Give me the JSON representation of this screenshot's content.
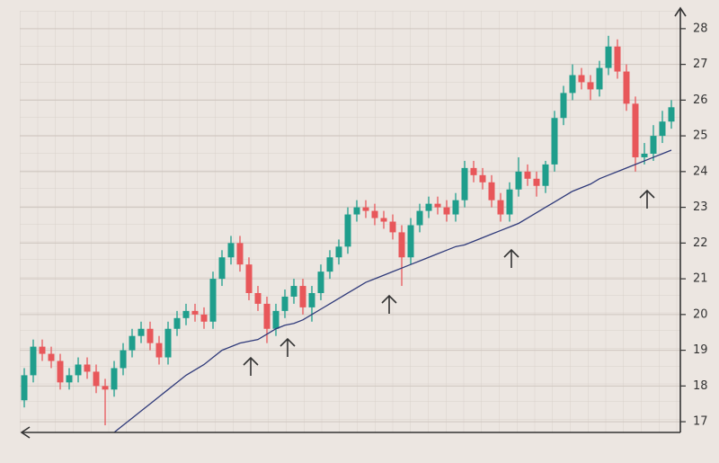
{
  "chart_data": {
    "type": "candlestick",
    "categories": [
      null,
      null,
      null,
      null,
      null,
      null,
      null,
      null,
      null,
      null,
      null,
      null,
      null,
      null,
      null,
      null,
      null,
      null,
      null,
      null,
      null,
      null,
      null,
      null,
      null,
      null,
      null,
      null,
      null,
      null,
      null,
      null,
      null,
      null,
      null,
      null,
      null,
      null,
      null,
      null,
      null,
      null,
      null,
      null,
      null,
      null,
      null,
      null,
      null,
      null,
      null,
      null,
      null,
      null,
      null,
      null,
      null,
      null,
      null,
      null,
      null,
      null,
      null,
      null,
      null,
      null,
      null,
      null,
      null,
      null,
      null,
      null,
      null
    ],
    "open": [
      17.6,
      18.3,
      19.1,
      18.9,
      18.7,
      18.1,
      18.3,
      18.6,
      18.4,
      18.0,
      17.9,
      18.5,
      19.0,
      19.4,
      19.6,
      19.2,
      18.8,
      19.6,
      19.9,
      20.1,
      20.0,
      19.8,
      21.0,
      21.6,
      22.0,
      21.4,
      20.6,
      20.3,
      19.6,
      20.1,
      20.5,
      20.8,
      20.2,
      20.6,
      21.2,
      21.6,
      21.9,
      22.8,
      23.0,
      22.9,
      22.7,
      22.6,
      22.3,
      21.6,
      22.5,
      22.9,
      23.1,
      23.0,
      22.8,
      23.2,
      24.1,
      23.9,
      23.7,
      23.2,
      22.8,
      23.5,
      24.0,
      23.8,
      23.6,
      24.2,
      25.5,
      26.2,
      26.7,
      26.5,
      26.3,
      26.9,
      27.5,
      26.8,
      25.9,
      24.4,
      24.5,
      25.0,
      25.4
    ],
    "high": [
      18.5,
      19.3,
      19.3,
      19.1,
      18.9,
      18.5,
      18.8,
      18.8,
      18.6,
      18.2,
      18.7,
      19.2,
      19.6,
      19.8,
      19.8,
      19.4,
      19.8,
      20.1,
      20.3,
      20.3,
      20.2,
      21.2,
      21.8,
      22.2,
      22.2,
      21.6,
      20.8,
      20.5,
      20.3,
      20.7,
      21.0,
      21.0,
      20.8,
      21.4,
      21.8,
      22.1,
      23.0,
      23.2,
      23.2,
      23.1,
      22.9,
      22.8,
      22.5,
      22.7,
      23.1,
      23.3,
      23.3,
      23.2,
      23.4,
      24.3,
      24.3,
      24.1,
      23.9,
      23.4,
      23.7,
      24.4,
      24.2,
      24.0,
      24.3,
      25.7,
      26.4,
      27.0,
      26.9,
      26.7,
      27.1,
      27.8,
      27.7,
      27.0,
      26.1,
      24.8,
      25.3,
      25.7,
      26.0
    ],
    "low": [
      17.4,
      18.1,
      18.7,
      18.5,
      17.9,
      17.9,
      18.1,
      18.2,
      17.8,
      16.9,
      17.7,
      18.3,
      18.8,
      19.2,
      19.0,
      18.6,
      18.6,
      19.4,
      19.7,
      19.8,
      19.6,
      19.6,
      20.8,
      21.4,
      21.2,
      20.4,
      20.1,
      19.2,
      19.4,
      19.9,
      20.3,
      20.0,
      19.8,
      20.4,
      21.0,
      21.4,
      21.7,
      22.6,
      22.7,
      22.5,
      22.4,
      22.1,
      20.8,
      21.4,
      22.3,
      22.7,
      22.8,
      22.6,
      22.6,
      23.0,
      23.7,
      23.5,
      23.0,
      22.6,
      22.6,
      23.3,
      23.6,
      23.3,
      23.4,
      24.0,
      25.3,
      26.0,
      26.3,
      26.0,
      26.1,
      26.7,
      26.6,
      25.7,
      24.0,
      24.2,
      24.3,
      24.8,
      25.2
    ],
    "close": [
      18.3,
      19.1,
      18.9,
      18.7,
      18.1,
      18.3,
      18.6,
      18.4,
      18.0,
      17.9,
      18.5,
      19.0,
      19.4,
      19.6,
      19.2,
      18.8,
      19.6,
      19.9,
      20.1,
      20.0,
      19.8,
      21.0,
      21.6,
      22.0,
      21.4,
      20.6,
      20.3,
      19.6,
      20.1,
      20.5,
      20.8,
      20.2,
      20.6,
      21.2,
      21.6,
      21.9,
      22.8,
      23.0,
      22.9,
      22.7,
      22.6,
      22.3,
      21.6,
      22.5,
      22.9,
      23.1,
      23.0,
      22.8,
      23.2,
      24.1,
      23.9,
      23.7,
      23.2,
      22.8,
      23.5,
      24.0,
      23.8,
      23.6,
      24.2,
      25.5,
      26.2,
      26.7,
      26.5,
      26.3,
      26.9,
      27.5,
      26.8,
      25.9,
      24.4,
      24.5,
      25.0,
      25.4,
      25.8
    ],
    "up_color": "#1f9e8c",
    "down_color": "#e8575a",
    "moving_average": {
      "color": "#2f3a7a",
      "values": [
        null,
        null,
        null,
        null,
        null,
        null,
        null,
        null,
        null,
        null,
        16.7,
        16.9,
        17.1,
        17.3,
        17.5,
        17.7,
        17.9,
        18.1,
        18.3,
        18.45,
        18.6,
        18.8,
        19.0,
        19.1,
        19.2,
        19.25,
        19.3,
        19.45,
        19.6,
        19.7,
        19.75,
        19.85,
        20.0,
        20.15,
        20.3,
        20.45,
        20.6,
        20.75,
        20.9,
        21.0,
        21.1,
        21.2,
        21.3,
        21.4,
        21.5,
        21.6,
        21.7,
        21.8,
        21.9,
        21.95,
        22.05,
        22.15,
        22.25,
        22.35,
        22.45,
        22.55,
        22.7,
        22.85,
        23.0,
        23.15,
        23.3,
        23.45,
        23.55,
        23.65,
        23.8,
        23.9,
        24.0,
        24.1,
        24.2,
        24.3,
        24.4,
        24.5,
        24.6
      ]
    },
    "ylim": [
      16.7,
      28.5
    ],
    "yticks": [
      17,
      18,
      19,
      20,
      21,
      22,
      23,
      24,
      25,
      26,
      27,
      28
    ],
    "grid": true
  }
}
